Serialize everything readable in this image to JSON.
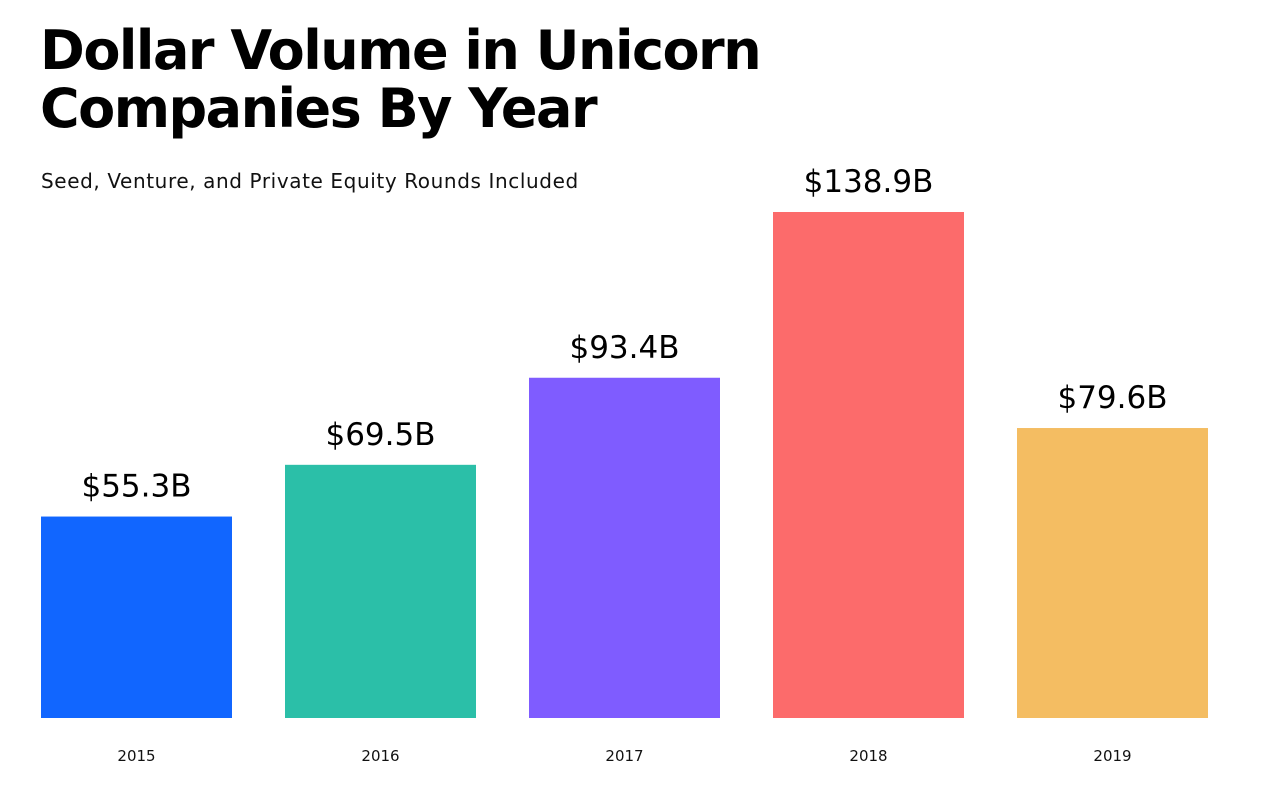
{
  "chart_data": {
    "type": "bar",
    "title_lines": [
      "Dollar Volume in Unicorn",
      "Companies By Year"
    ],
    "subtitle": "Seed, Venture, and Private Equity Rounds Included",
    "xlabel": "",
    "ylabel": "",
    "ylim": [
      0,
      138.9
    ],
    "grid": false,
    "legend": "none",
    "categories": [
      "2015",
      "2016",
      "2017",
      "2018",
      "2019"
    ],
    "values": [
      55.3,
      69.5,
      93.4,
      138.9,
      79.6
    ],
    "data_labels": [
      "$55.3B",
      "$69.5B",
      "$93.4B",
      "$138.9B",
      "$79.6B"
    ],
    "colors": [
      "#1166ff",
      "#2bbfa8",
      "#7f5cff",
      "#fc6b6b",
      "#f4bd62"
    ]
  }
}
